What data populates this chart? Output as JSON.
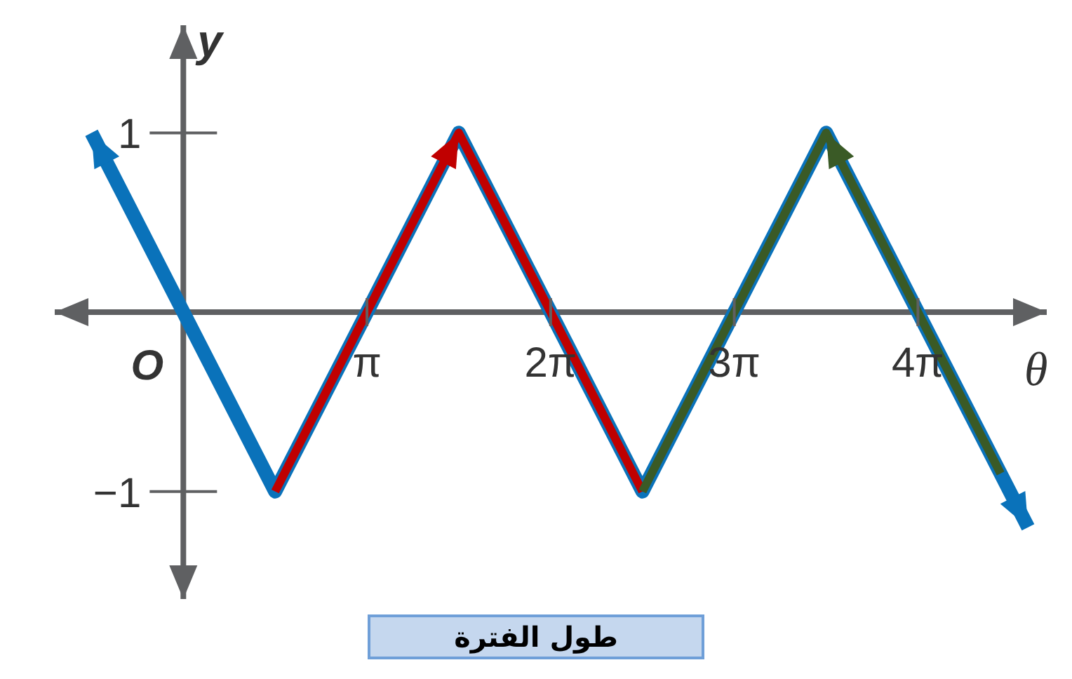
{
  "chart_data": {
    "type": "line",
    "xlabel": "θ",
    "ylabel": "y",
    "annotations": [
      "O",
      "طول الفترة"
    ],
    "xlim": [
      -2.2,
      14.77
    ],
    "ylim": [
      -1.6,
      1.6
    ],
    "xticks": [
      {
        "value": 3.1416,
        "label": "π"
      },
      {
        "value": 6.2832,
        "label": "2π"
      },
      {
        "value": 9.4248,
        "label": "3π"
      },
      {
        "value": 12.5664,
        "label": "4π"
      }
    ],
    "yticks": [
      1,
      {
        "value": -1,
        "label": "−1"
      }
    ],
    "grid": false,
    "legend": false,
    "marker": "none",
    "line_style": "solid",
    "series": [
      {
        "color": "#0a72ba",
        "x": [
          -1.571,
          1.571,
          4.712,
          7.854,
          10.996,
          14.451
        ],
        "values": [
          1,
          -1,
          1,
          -1,
          1,
          -1.2
        ]
      },
      {
        "color": "#c00000",
        "x": [
          1.571,
          4.712,
          7.854
        ],
        "values": [
          -1,
          1,
          -1
        ]
      },
      {
        "color": "#3a5a26",
        "x": [
          7.854,
          10.996,
          13.98
        ],
        "values": [
          -1,
          1,
          -0.9
        ]
      }
    ]
  }
}
